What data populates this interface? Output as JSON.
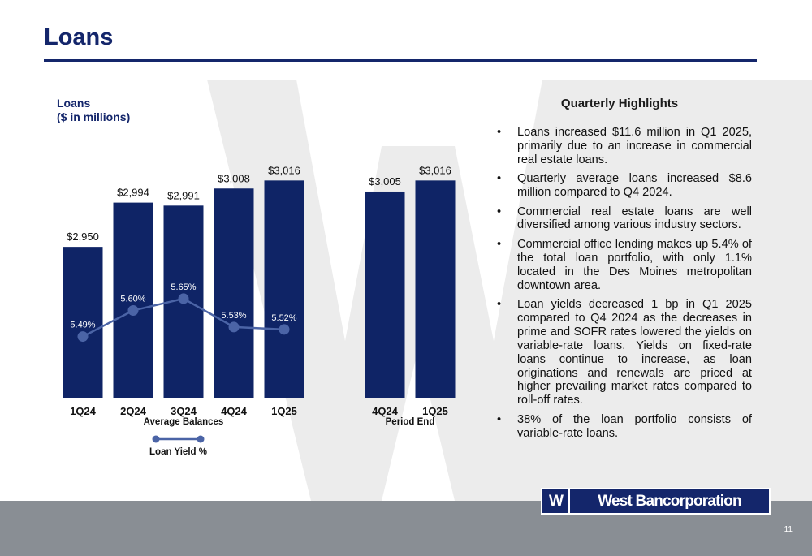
{
  "slide": {
    "title": "Loans",
    "page_number": "11",
    "logo_text": "West Bancorporation",
    "logo_mark": "W"
  },
  "highlights": {
    "heading": "Quarterly Highlights",
    "bullets": [
      "Loans increased $11.6 million in Q1 2025, primarily due to an increase in commercial real estate loans.",
      "Quarterly average loans increased $8.6 million compared to Q4 2024.",
      "Commercial real estate loans are well diversified among various industry sectors.",
      "Commercial office lending makes up 5.4% of the total loan portfolio, with only 1.1% located in the Des Moines metropolitan downtown area.",
      "Loan yields decreased 1 bp in Q1 2025 compared to Q4 2024 as the decreases in prime and SOFR rates lowered the yields on variable-rate loans. Yields on fixed-rate loans continue to increase, as loan originations and renewals are priced at higher prevailing market rates compared to roll-off rates.",
      "38% of the loan portfolio consists of variable-rate loans."
    ]
  },
  "colors": {
    "navy": "#14266b",
    "bar": "#0f2466",
    "line": "#4b64a6",
    "footer": "#898e94",
    "watermark": "#ececec"
  },
  "chart_data": {
    "type": "bar",
    "title": "Loans",
    "subtitle": "($ in millions)",
    "ylim": [
      2800,
      3030
    ],
    "groups": [
      {
        "label": "Average Balances",
        "categories": [
          "1Q24",
          "2Q24",
          "3Q24",
          "4Q24",
          "1Q25"
        ],
        "values": [
          2950,
          2994,
          2991,
          3008,
          3016
        ],
        "value_labels": [
          "$2,950",
          "$2,994",
          "$2,991",
          "$3,008",
          "$3,016"
        ],
        "line_series": {
          "name": "Loan Yield %",
          "values": [
            5.49,
            5.6,
            5.65,
            5.53,
            5.52
          ],
          "labels": [
            "5.49%",
            "5.60%",
            "5.65%",
            "5.53%",
            "5.52%"
          ],
          "ylim": [
            5.3,
            5.78
          ]
        }
      },
      {
        "label": "Period End",
        "categories": [
          "4Q24",
          "1Q25"
        ],
        "values": [
          3005,
          3016
        ],
        "value_labels": [
          "$3,005",
          "$3,016"
        ]
      }
    ],
    "legend": {
      "position": "bottom-left",
      "entries": [
        "Loan Yield %"
      ]
    },
    "grid": false
  }
}
